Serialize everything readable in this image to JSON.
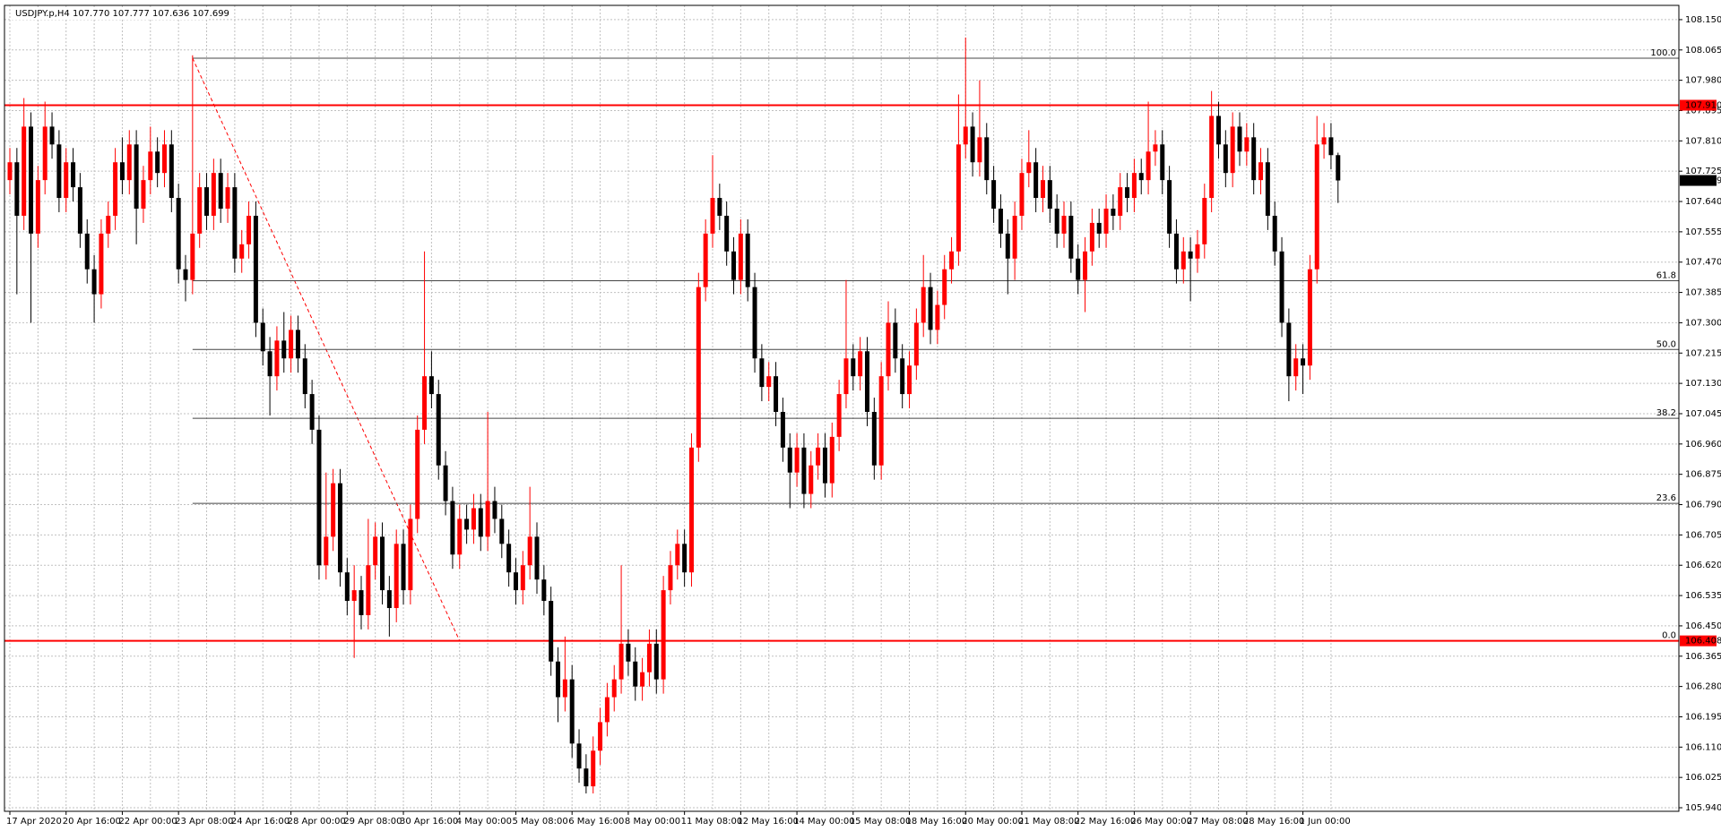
{
  "chart_data": {
    "type": "candlestick",
    "title": "USDJPY.p,H4  107.770 107.777 107.636 107.699",
    "colors": {
      "up": "#ff0000",
      "down": "#000000"
    },
    "grid": true,
    "ylim": [
      105.93,
      108.19
    ],
    "yticks": [
      {
        "value": 108.15,
        "label": "108.150"
      },
      108.065,
      {
        "value": 107.98,
        "label": "107.980"
      },
      107.895,
      {
        "value": 107.81,
        "label": "107.810"
      },
      107.725,
      {
        "value": 107.64,
        "label": "107.640"
      },
      107.555,
      {
        "value": 107.47,
        "label": "107.470"
      },
      107.385,
      {
        "value": 107.3,
        "label": "107.300"
      },
      107.215,
      {
        "value": 107.13,
        "label": "107.130"
      },
      107.045,
      {
        "value": 106.96,
        "label": "106.960"
      },
      106.875,
      {
        "value": 106.79,
        "label": "106.790"
      },
      106.705,
      {
        "value": 106.62,
        "label": "106.620"
      },
      106.535,
      {
        "value": 106.45,
        "label": "106.450"
      },
      106.365,
      {
        "value": 106.28,
        "label": "106.280"
      },
      106.195,
      {
        "value": 106.11,
        "label": "106.110"
      },
      106.025,
      {
        "value": 105.94,
        "label": "105.940"
      }
    ],
    "hlines": [
      {
        "value": 107.91,
        "label": "107.910",
        "color": "#ff0000"
      },
      {
        "value": 106.408,
        "label": "106.408",
        "color": "#ff0000"
      }
    ],
    "fibo": {
      "from": {
        "x": 26,
        "y": 108.042
      },
      "to": {
        "x": 64,
        "y": 106.408
      },
      "color": "#ff0000",
      "levels": [
        {
          "value": 100,
          "label": "100.0"
        },
        61.8,
        {
          "value": 50,
          "label": "50.0"
        },
        38.2,
        23.6,
        {
          "value": 0,
          "label": "0.0"
        }
      ]
    },
    "categories": [
      "17 Apr 2020",
      null,
      null,
      null,
      null,
      null,
      null,
      null,
      "20 Apr 16:00",
      null,
      null,
      null,
      null,
      null,
      null,
      null,
      "22 Apr 00:00",
      null,
      null,
      null,
      null,
      null,
      null,
      null,
      "23 Apr 08:00",
      null,
      null,
      null,
      null,
      null,
      null,
      null,
      "24 Apr 16:00",
      null,
      null,
      null,
      null,
      null,
      null,
      null,
      "28 Apr 00:00",
      null,
      null,
      null,
      null,
      null,
      null,
      null,
      "29 Apr 08:00",
      null,
      null,
      null,
      null,
      null,
      null,
      null,
      "30 Apr 16:00",
      null,
      null,
      null,
      null,
      null,
      null,
      null,
      "4 May 00:00",
      null,
      null,
      null,
      null,
      null,
      null,
      null,
      "5 May 08:00",
      null,
      null,
      null,
      null,
      null,
      null,
      null,
      "6 May 16:00",
      null,
      null,
      null,
      null,
      null,
      null,
      null,
      "8 May 00:00",
      null,
      null,
      null,
      null,
      null,
      null,
      null,
      "11 May 08:00",
      null,
      null,
      null,
      null,
      null,
      null,
      null,
      "12 May 16:00",
      null,
      null,
      null,
      null,
      null,
      null,
      null,
      "14 May 00:00",
      null,
      null,
      null,
      null,
      null,
      null,
      null,
      "15 May 08:00",
      null,
      null,
      null,
      null,
      null,
      null,
      null,
      "18 May 16:00",
      null,
      null,
      null,
      null,
      null,
      null,
      null,
      "20 May 00:00",
      null,
      null,
      null,
      null,
      null,
      null,
      null,
      "21 May 08:00",
      null,
      null,
      null,
      null,
      null,
      null,
      null,
      "22 May 16:00",
      null,
      null,
      null,
      null,
      null,
      null,
      null,
      "26 May 00:00",
      null,
      null,
      null,
      null,
      null,
      null,
      null,
      "27 May 08:00",
      null,
      null,
      null,
      null,
      null,
      null,
      null,
      "28 May 16:00",
      null,
      null,
      null,
      null,
      null,
      null,
      null,
      "1 Jun 00:00",
      null,
      null,
      null,
      null,
      null
    ],
    "open": [
      107.7,
      107.75,
      107.6,
      107.85,
      107.55,
      107.7,
      107.85,
      107.8,
      107.65,
      107.75,
      107.68,
      107.55,
      107.45,
      107.38,
      107.55,
      107.6,
      107.75,
      107.7,
      107.8,
      107.62,
      107.7,
      107.78,
      107.72,
      107.8,
      107.65,
      107.45,
      107.42,
      107.55,
      107.68,
      107.6,
      107.72,
      107.62,
      107.68,
      107.48,
      107.52,
      107.6,
      107.3,
      107.22,
      107.15,
      107.25,
      107.2,
      107.28,
      107.2,
      107.1,
      107.0,
      106.62,
      106.7,
      106.85,
      106.6,
      106.52,
      106.55,
      106.48,
      106.62,
      106.7,
      106.55,
      106.5,
      106.68,
      106.55,
      106.75,
      107.0,
      107.15,
      107.1,
      106.9,
      106.8,
      106.65,
      106.75,
      106.72,
      106.78,
      106.7,
      106.8,
      106.75,
      106.68,
      106.6,
      106.55,
      106.62,
      106.7,
      106.58,
      106.52,
      106.35,
      106.25,
      106.3,
      106.12,
      106.05,
      106.0,
      106.1,
      106.18,
      106.25,
      106.3,
      106.4,
      106.35,
      106.28,
      106.32,
      106.4,
      106.3,
      106.55,
      106.62,
      106.68,
      106.6,
      106.95,
      107.4,
      107.55,
      107.65,
      107.6,
      107.5,
      107.42,
      107.55,
      107.4,
      107.2,
      107.12,
      107.15,
      107.05,
      106.95,
      106.88,
      106.95,
      106.82,
      106.9,
      106.95,
      106.85,
      106.98,
      107.1,
      107.2,
      107.15,
      107.22,
      107.05,
      106.9,
      107.15,
      107.3,
      107.2,
      107.1,
      107.18,
      107.3,
      107.4,
      107.28,
      107.35,
      107.45,
      107.5,
      107.8,
      107.85,
      107.75,
      107.82,
      107.7,
      107.62,
      107.55,
      107.48,
      107.6,
      107.72,
      107.75,
      107.65,
      107.7,
      107.62,
      107.55,
      107.6,
      107.48,
      107.42,
      107.5,
      107.58,
      107.55,
      107.62,
      107.6,
      107.68,
      107.65,
      107.72,
      107.7,
      107.78,
      107.8,
      107.7,
      107.55,
      107.45,
      107.5,
      107.48,
      107.52,
      107.65,
      107.88,
      107.8,
      107.72,
      107.85,
      107.78,
      107.82,
      107.7,
      107.75,
      107.6,
      107.5,
      107.3,
      107.15,
      107.2,
      107.18,
      107.45,
      107.8,
      107.82,
      107.77
    ],
    "high": [
      107.79,
      107.79,
      107.93,
      107.89,
      107.74,
      107.92,
      107.89,
      107.84,
      107.79,
      107.79,
      107.72,
      107.59,
      107.49,
      107.59,
      107.64,
      107.79,
      107.82,
      107.84,
      107.84,
      107.74,
      107.85,
      107.82,
      107.84,
      107.84,
      107.69,
      107.49,
      108.05,
      107.72,
      107.72,
      107.76,
      107.76,
      107.72,
      107.72,
      107.56,
      107.64,
      107.64,
      107.34,
      107.26,
      107.29,
      107.33,
      107.32,
      107.32,
      107.24,
      107.14,
      107.04,
      106.88,
      106.89,
      106.89,
      106.64,
      106.62,
      106.59,
      106.75,
      106.74,
      106.74,
      106.59,
      106.72,
      106.72,
      106.79,
      107.04,
      107.5,
      107.22,
      107.14,
      106.94,
      106.84,
      106.79,
      106.79,
      106.82,
      106.82,
      107.05,
      106.84,
      106.79,
      106.72,
      106.64,
      106.66,
      106.84,
      106.74,
      106.62,
      106.56,
      106.39,
      106.42,
      106.34,
      106.16,
      106.09,
      106.14,
      106.22,
      106.29,
      106.34,
      106.62,
      106.44,
      106.39,
      106.36,
      106.44,
      106.44,
      106.59,
      106.66,
      106.72,
      106.72,
      106.99,
      107.44,
      107.59,
      107.77,
      107.69,
      107.64,
      107.54,
      107.59,
      107.59,
      107.44,
      107.24,
      107.19,
      107.19,
      107.09,
      106.99,
      106.99,
      106.99,
      106.94,
      106.99,
      106.99,
      107.02,
      107.14,
      107.42,
      107.24,
      107.26,
      107.26,
      107.09,
      107.19,
      107.36,
      107.34,
      107.24,
      107.22,
      107.34,
      107.49,
      107.44,
      107.39,
      107.49,
      107.54,
      107.94,
      108.1,
      107.89,
      107.98,
      107.86,
      107.74,
      107.66,
      107.59,
      107.64,
      107.76,
      107.84,
      107.79,
      107.74,
      107.74,
      107.66,
      107.64,
      107.64,
      107.52,
      107.54,
      107.62,
      107.62,
      107.66,
      107.66,
      107.72,
      107.72,
      107.76,
      107.76,
      107.92,
      107.84,
      107.84,
      107.74,
      107.59,
      107.54,
      107.54,
      107.56,
      107.69,
      107.95,
      107.92,
      107.84,
      107.89,
      107.89,
      107.86,
      107.86,
      107.79,
      107.79,
      107.64,
      107.54,
      107.34,
      107.24,
      107.24,
      107.49,
      107.88,
      107.86,
      107.86,
      107.777
    ],
    "low": [
      107.66,
      107.38,
      107.56,
      107.3,
      107.51,
      107.66,
      107.76,
      107.61,
      107.61,
      107.64,
      107.51,
      107.41,
      107.3,
      107.34,
      107.51,
      107.56,
      107.66,
      107.66,
      107.52,
      107.58,
      107.66,
      107.68,
      107.68,
      107.61,
      107.41,
      107.36,
      107.38,
      107.51,
      107.56,
      107.56,
      107.58,
      107.58,
      107.44,
      107.44,
      107.48,
      107.26,
      107.18,
      107.04,
      107.11,
      107.16,
      107.16,
      107.16,
      107.06,
      106.96,
      106.58,
      106.58,
      106.66,
      106.56,
      106.48,
      106.36,
      106.44,
      106.44,
      106.58,
      106.51,
      106.42,
      106.46,
      106.51,
      106.51,
      106.71,
      106.96,
      107.06,
      106.86,
      106.76,
      106.61,
      106.61,
      106.68,
      106.68,
      106.66,
      106.66,
      106.71,
      106.64,
      106.56,
      106.51,
      106.51,
      106.58,
      106.54,
      106.48,
      106.31,
      106.18,
      106.21,
      106.08,
      106.01,
      105.98,
      105.98,
      106.06,
      106.14,
      106.21,
      106.26,
      106.31,
      106.24,
      106.24,
      106.28,
      106.26,
      106.26,
      106.51,
      106.58,
      106.56,
      106.56,
      106.91,
      107.36,
      107.51,
      107.56,
      107.46,
      107.38,
      107.38,
      107.36,
      107.16,
      107.08,
      107.08,
      107.01,
      106.91,
      106.78,
      106.84,
      106.78,
      106.78,
      106.86,
      106.81,
      106.81,
      106.94,
      107.06,
      107.11,
      107.11,
      107.01,
      106.86,
      106.86,
      107.11,
      107.16,
      107.06,
      107.06,
      107.14,
      107.26,
      107.24,
      107.24,
      107.31,
      107.41,
      107.46,
      107.76,
      107.71,
      107.71,
      107.66,
      107.58,
      107.51,
      107.38,
      107.42,
      107.56,
      107.68,
      107.61,
      107.61,
      107.58,
      107.51,
      107.51,
      107.44,
      107.38,
      107.33,
      107.46,
      107.51,
      107.51,
      107.56,
      107.56,
      107.61,
      107.61,
      107.66,
      107.66,
      107.74,
      107.66,
      107.51,
      107.41,
      107.41,
      107.36,
      107.44,
      107.48,
      107.61,
      107.76,
      107.68,
      107.68,
      107.74,
      107.74,
      107.66,
      107.66,
      107.56,
      107.46,
      107.26,
      107.08,
      107.11,
      107.1,
      107.14,
      107.41,
      107.76,
      107.73,
      107.636
    ],
    "close": [
      107.75,
      107.6,
      107.85,
      107.55,
      107.7,
      107.85,
      107.8,
      107.65,
      107.75,
      107.68,
      107.55,
      107.45,
      107.38,
      107.55,
      107.6,
      107.75,
      107.7,
      107.8,
      107.62,
      107.7,
      107.78,
      107.72,
      107.8,
      107.65,
      107.45,
      107.42,
      107.55,
      107.68,
      107.6,
      107.72,
      107.62,
      107.68,
      107.48,
      107.52,
      107.6,
      107.3,
      107.22,
      107.15,
      107.25,
      107.2,
      107.28,
      107.2,
      107.1,
      107.0,
      106.62,
      106.7,
      106.85,
      106.6,
      106.52,
      106.55,
      106.48,
      106.62,
      106.7,
      106.55,
      106.5,
      106.68,
      106.55,
      106.75,
      107.0,
      107.15,
      107.1,
      106.9,
      106.8,
      106.65,
      106.75,
      106.72,
      106.78,
      106.7,
      106.8,
      106.75,
      106.68,
      106.6,
      106.55,
      106.62,
      106.7,
      106.58,
      106.52,
      106.35,
      106.25,
      106.3,
      106.12,
      106.05,
      106.0,
      106.1,
      106.18,
      106.25,
      106.3,
      106.4,
      106.35,
      106.28,
      106.32,
      106.4,
      106.3,
      106.55,
      106.62,
      106.68,
      106.6,
      106.95,
      107.4,
      107.55,
      107.65,
      107.6,
      107.5,
      107.42,
      107.55,
      107.4,
      107.2,
      107.12,
      107.15,
      107.05,
      106.95,
      106.88,
      106.95,
      106.82,
      106.9,
      106.95,
      106.85,
      106.98,
      107.1,
      107.2,
      107.15,
      107.22,
      107.05,
      106.9,
      107.15,
      107.3,
      107.2,
      107.1,
      107.18,
      107.3,
      107.4,
      107.28,
      107.35,
      107.45,
      107.5,
      107.8,
      107.85,
      107.75,
      107.82,
      107.7,
      107.62,
      107.55,
      107.48,
      107.6,
      107.72,
      107.75,
      107.65,
      107.7,
      107.62,
      107.55,
      107.6,
      107.48,
      107.42,
      107.5,
      107.58,
      107.55,
      107.62,
      107.6,
      107.68,
      107.65,
      107.72,
      107.7,
      107.78,
      107.8,
      107.7,
      107.55,
      107.45,
      107.5,
      107.48,
      107.52,
      107.65,
      107.88,
      107.8,
      107.72,
      107.85,
      107.78,
      107.82,
      107.7,
      107.75,
      107.6,
      107.5,
      107.3,
      107.15,
      107.2,
      107.18,
      107.45,
      107.8,
      107.82,
      107.77,
      107.699
    ]
  }
}
